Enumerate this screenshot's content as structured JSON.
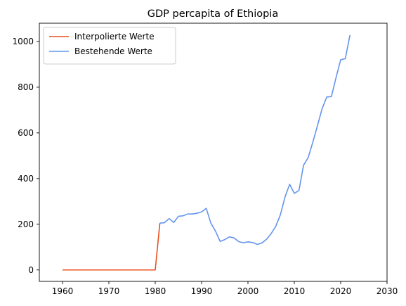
{
  "chart_data": {
    "type": "line",
    "title": "GDP percapita of Ethiopia",
    "xlabel": "",
    "ylabel": "",
    "xlim": [
      1955,
      2030
    ],
    "ylim": [
      -50,
      1080
    ],
    "xticks": [
      1960,
      1970,
      1980,
      1990,
      2000,
      2010,
      2020,
      2030
    ],
    "yticks": [
      0,
      200,
      400,
      600,
      800,
      1000
    ],
    "grid": false,
    "legend_position": "upper-left",
    "series": [
      {
        "name": "Interpolierte Werte",
        "color": "#e8501e",
        "x": [
          1960,
          1961,
          1962,
          1963,
          1964,
          1965,
          1966,
          1967,
          1968,
          1969,
          1970,
          1971,
          1972,
          1973,
          1974,
          1975,
          1976,
          1977,
          1978,
          1979,
          1980,
          1981
        ],
        "y": [
          0,
          0,
          0,
          0,
          0,
          0,
          0,
          0,
          0,
          0,
          0,
          0,
          0,
          0,
          0,
          0,
          0,
          0,
          0,
          0,
          0,
          205
        ]
      },
      {
        "name": "Bestehende Werte",
        "color": "#6495ed",
        "x": [
          1981,
          1982,
          1983,
          1984,
          1985,
          1986,
          1987,
          1988,
          1989,
          1990,
          1991,
          1992,
          1993,
          1994,
          1995,
          1996,
          1997,
          1998,
          1999,
          2000,
          2001,
          2002,
          2003,
          2004,
          2005,
          2006,
          2007,
          2008,
          2009,
          2010,
          2011,
          2012,
          2013,
          2014,
          2015,
          2016,
          2017,
          2018,
          2019,
          2020,
          2021,
          2022
        ],
        "y": [
          205,
          207,
          225,
          208,
          235,
          237,
          245,
          245,
          248,
          254,
          270,
          205,
          170,
          125,
          133,
          145,
          140,
          124,
          119,
          123,
          120,
          112,
          118,
          134,
          159,
          191,
          242,
          320,
          375,
          335,
          348,
          459,
          492,
          560,
          632,
          706,
          757,
          759,
          842,
          920,
          925,
          1028
        ]
      }
    ]
  }
}
